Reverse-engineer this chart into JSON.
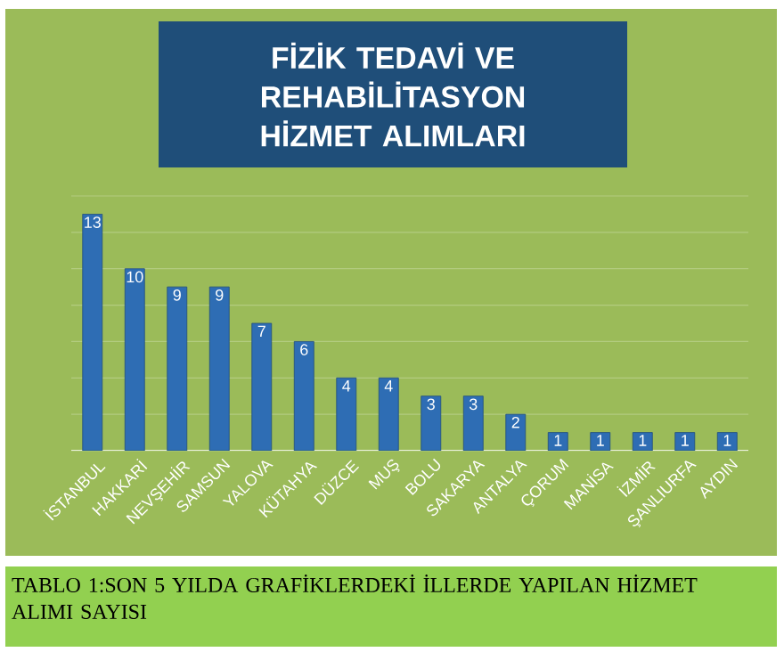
{
  "chart_data": {
    "type": "bar",
    "title": "FİZİK TEDAVİ VE REHABİLİTASYON HİZMET ALIMLARI",
    "categories": [
      "İSTANBUL",
      "HAKKARİ",
      "NEVŞEHİR",
      "SAMSUN",
      "YALOVA",
      "KÜTAHYA",
      "DÜZCE",
      "MUŞ",
      "BOLU",
      "SAKARYA",
      "ANTALYA",
      "ÇORUM",
      "MANİSA",
      "İZMİR",
      "ŞANLIURFA",
      "AYDIN"
    ],
    "values": [
      13,
      10,
      9,
      9,
      7,
      6,
      4,
      4,
      3,
      3,
      2,
      1,
      1,
      1,
      1,
      1
    ],
    "color": "#2e6db4",
    "data_labels": true,
    "ylim": [
      0,
      14
    ],
    "yticks": [
      {
        "value": 0,
        "label": null
      },
      {
        "value": 2,
        "label": null
      },
      {
        "value": 4,
        "label": null
      },
      {
        "value": 6,
        "label": null
      },
      {
        "value": 8,
        "label": null
      },
      {
        "value": 10,
        "label": null
      },
      {
        "value": 12,
        "label": null
      },
      {
        "value": 14,
        "label": null
      }
    ],
    "grid": "y",
    "tick_labels": "x",
    "annotations": [
      "TABLO 1:SON 5 YILDA GRAFİKLERDEKİ İLLERDE YAPILAN HİZMET ALIMI SAYISI"
    ]
  }
}
